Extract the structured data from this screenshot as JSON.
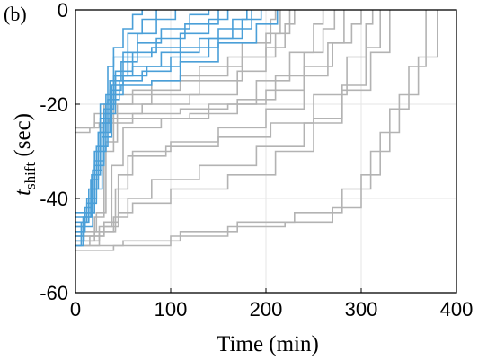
{
  "panel_label": "(b)",
  "chart_data": {
    "type": "line",
    "title": "",
    "xlabel": "Time (min)",
    "ylabel_main": "t",
    "ylabel_sub": "shift",
    "ylabel_unit": " (sec)",
    "xlim": [
      0,
      400
    ],
    "ylim": [
      -60,
      0
    ],
    "xticks": [
      0,
      100,
      200,
      300,
      400
    ],
    "yticks": [
      0,
      -20,
      -40,
      -60
    ],
    "xtick_labels": [
      "0",
      "100",
      "200",
      "300",
      "400"
    ],
    "ytick_labels": [
      "0",
      "-20",
      "-40",
      "-60"
    ],
    "grid": true,
    "colors": {
      "blue": "#4a9fd8",
      "gray": "#b3b3b3"
    },
    "series": [
      {
        "color": "blue",
        "points": [
          [
            0,
            -50
          ],
          [
            6,
            -45
          ],
          [
            14,
            -40
          ],
          [
            20,
            -30
          ],
          [
            26,
            -20
          ],
          [
            34,
            -12
          ],
          [
            40,
            -8
          ],
          [
            50,
            -4
          ],
          [
            60,
            -1
          ],
          [
            70,
            0
          ]
        ]
      },
      {
        "color": "blue",
        "points": [
          [
            0,
            -48
          ],
          [
            8,
            -44
          ],
          [
            16,
            -36
          ],
          [
            24,
            -26
          ],
          [
            32,
            -18
          ],
          [
            40,
            -10
          ],
          [
            55,
            -5
          ],
          [
            70,
            -2
          ],
          [
            85,
            0
          ]
        ]
      },
      {
        "color": "blue",
        "points": [
          [
            0,
            -46
          ],
          [
            10,
            -42
          ],
          [
            18,
            -34
          ],
          [
            28,
            -24
          ],
          [
            38,
            -16
          ],
          [
            50,
            -9
          ],
          [
            65,
            -5
          ],
          [
            85,
            -2
          ],
          [
            105,
            0
          ]
        ]
      },
      {
        "color": "blue",
        "points": [
          [
            0,
            -49
          ],
          [
            9,
            -44
          ],
          [
            17,
            -35
          ],
          [
            26,
            -23
          ],
          [
            36,
            -15
          ],
          [
            48,
            -11
          ],
          [
            65,
            -7
          ],
          [
            90,
            -4
          ],
          [
            120,
            -1
          ],
          [
            140,
            0
          ]
        ]
      },
      {
        "color": "blue",
        "points": [
          [
            0,
            -44
          ],
          [
            12,
            -40
          ],
          [
            22,
            -30
          ],
          [
            32,
            -20
          ],
          [
            42,
            -13
          ],
          [
            60,
            -9
          ],
          [
            85,
            -6
          ],
          [
            115,
            -3
          ],
          [
            150,
            0
          ]
        ]
      },
      {
        "color": "blue",
        "points": [
          [
            0,
            -47
          ],
          [
            10,
            -43
          ],
          [
            20,
            -33
          ],
          [
            30,
            -22
          ],
          [
            42,
            -14
          ],
          [
            60,
            -12
          ],
          [
            90,
            -9
          ],
          [
            130,
            -6
          ],
          [
            165,
            -2
          ],
          [
            180,
            0
          ]
        ]
      },
      {
        "color": "blue",
        "points": [
          [
            0,
            -45
          ],
          [
            12,
            -41
          ],
          [
            22,
            -29
          ],
          [
            34,
            -19
          ],
          [
            46,
            -15
          ],
          [
            70,
            -13
          ],
          [
            100,
            -10
          ],
          [
            140,
            -6
          ],
          [
            175,
            -2
          ],
          [
            195,
            0
          ]
        ]
      },
      {
        "color": "blue",
        "points": [
          [
            0,
            -43
          ],
          [
            14,
            -38
          ],
          [
            24,
            -26
          ],
          [
            36,
            -17
          ],
          [
            48,
            -16
          ],
          [
            80,
            -15
          ],
          [
            110,
            -11
          ],
          [
            150,
            -7
          ],
          [
            190,
            -3
          ],
          [
            212,
            0
          ]
        ]
      },
      {
        "color": "blue",
        "points": [
          [
            0,
            -50
          ],
          [
            8,
            -46
          ],
          [
            18,
            -38
          ],
          [
            28,
            -27
          ],
          [
            38,
            -18
          ],
          [
            50,
            -14
          ],
          [
            75,
            -12
          ],
          [
            110,
            -8
          ],
          [
            150,
            -4
          ],
          [
            185,
            0
          ]
        ]
      },
      {
        "color": "blue",
        "points": [
          [
            0,
            -46
          ],
          [
            10,
            -43
          ],
          [
            20,
            -32
          ],
          [
            30,
            -21
          ],
          [
            40,
            -14
          ],
          [
            55,
            -10
          ],
          [
            80,
            -8
          ],
          [
            110,
            -5
          ],
          [
            140,
            -2
          ],
          [
            160,
            0
          ]
        ]
      },
      {
        "color": "gray",
        "points": [
          [
            0,
            -25
          ],
          [
            20,
            -24
          ],
          [
            35,
            -23
          ],
          [
            60,
            -22
          ],
          [
            110,
            -21
          ],
          [
            160,
            -20
          ],
          [
            200,
            -17
          ],
          [
            240,
            -12
          ],
          [
            270,
            -7
          ],
          [
            290,
            -3
          ],
          [
            300,
            0
          ]
        ]
      },
      {
        "color": "gray",
        "points": [
          [
            0,
            -25
          ],
          [
            25,
            -24
          ],
          [
            60,
            -23
          ],
          [
            120,
            -22
          ],
          [
            170,
            -19
          ],
          [
            210,
            -14
          ],
          [
            240,
            -9
          ],
          [
            260,
            -4
          ],
          [
            272,
            0
          ]
        ]
      },
      {
        "color": "gray",
        "points": [
          [
            0,
            -50
          ],
          [
            15,
            -48
          ],
          [
            30,
            -46
          ],
          [
            45,
            -43
          ],
          [
            60,
            -41
          ],
          [
            100,
            -38
          ],
          [
            160,
            -35
          ],
          [
            210,
            -30
          ],
          [
            250,
            -23
          ],
          [
            280,
            -16
          ],
          [
            305,
            -8
          ],
          [
            320,
            0
          ]
        ]
      },
      {
        "color": "gray",
        "points": [
          [
            0,
            -49
          ],
          [
            20,
            -47
          ],
          [
            40,
            -44
          ],
          [
            55,
            -40
          ],
          [
            80,
            -36
          ],
          [
            130,
            -33
          ],
          [
            190,
            -29
          ],
          [
            240,
            -24
          ],
          [
            280,
            -17
          ],
          [
            310,
            -9
          ],
          [
            330,
            0
          ]
        ]
      },
      {
        "color": "gray",
        "points": [
          [
            0,
            -51
          ],
          [
            40,
            -50
          ],
          [
            100,
            -48
          ],
          [
            160,
            -46
          ],
          [
            220,
            -45
          ],
          [
            270,
            -42
          ],
          [
            300,
            -35
          ],
          [
            320,
            -26
          ],
          [
            340,
            -18
          ],
          [
            360,
            -10
          ],
          [
            380,
            0
          ]
        ]
      },
      {
        "color": "gray",
        "points": [
          [
            0,
            -50
          ],
          [
            50,
            -49
          ],
          [
            110,
            -47
          ],
          [
            170,
            -45
          ],
          [
            230,
            -43
          ],
          [
            280,
            -38
          ],
          [
            310,
            -30
          ],
          [
            330,
            -21
          ],
          [
            350,
            -12
          ],
          [
            368,
            0
          ]
        ]
      },
      {
        "color": "gray",
        "points": [
          [
            0,
            -48
          ],
          [
            20,
            -44
          ],
          [
            30,
            -30
          ],
          [
            40,
            -22
          ],
          [
            70,
            -20
          ],
          [
            120,
            -18
          ],
          [
            170,
            -13
          ],
          [
            200,
            -8
          ],
          [
            220,
            -3
          ],
          [
            230,
            0
          ]
        ]
      },
      {
        "color": "gray",
        "points": [
          [
            0,
            -47
          ],
          [
            22,
            -43
          ],
          [
            32,
            -28
          ],
          [
            44,
            -20
          ],
          [
            80,
            -18
          ],
          [
            130,
            -15
          ],
          [
            175,
            -10
          ],
          [
            210,
            -5
          ],
          [
            225,
            0
          ]
        ]
      },
      {
        "color": "gray",
        "points": [
          [
            0,
            -49
          ],
          [
            25,
            -46
          ],
          [
            38,
            -33
          ],
          [
            50,
            -25
          ],
          [
            90,
            -23
          ],
          [
            140,
            -20
          ],
          [
            190,
            -15
          ],
          [
            225,
            -9
          ],
          [
            250,
            -3
          ],
          [
            260,
            0
          ]
        ]
      },
      {
        "color": "gray",
        "points": [
          [
            0,
            -48
          ],
          [
            30,
            -45
          ],
          [
            45,
            -35
          ],
          [
            60,
            -30
          ],
          [
            100,
            -28
          ],
          [
            150,
            -25
          ],
          [
            200,
            -21
          ],
          [
            240,
            -14
          ],
          [
            265,
            -7
          ],
          [
            282,
            0
          ]
        ]
      },
      {
        "color": "gray",
        "points": [
          [
            0,
            -50
          ],
          [
            25,
            -47
          ],
          [
            42,
            -38
          ],
          [
            55,
            -31
          ],
          [
            95,
            -29
          ],
          [
            150,
            -27
          ],
          [
            205,
            -24
          ],
          [
            250,
            -18
          ],
          [
            285,
            -10
          ],
          [
            305,
            -3
          ],
          [
            312,
            0
          ]
        ]
      },
      {
        "color": "gray",
        "points": [
          [
            0,
            -26
          ],
          [
            15,
            -25
          ],
          [
            30,
            -20
          ],
          [
            60,
            -17
          ],
          [
            110,
            -14
          ],
          [
            160,
            -10
          ],
          [
            200,
            -5
          ],
          [
            215,
            0
          ]
        ]
      },
      {
        "color": "gray",
        "points": [
          [
            0,
            -25
          ],
          [
            20,
            -22
          ],
          [
            40,
            -18
          ],
          [
            80,
            -15
          ],
          [
            130,
            -12
          ],
          [
            175,
            -7
          ],
          [
            205,
            -2
          ],
          [
            210,
            0
          ]
        ]
      }
    ]
  }
}
